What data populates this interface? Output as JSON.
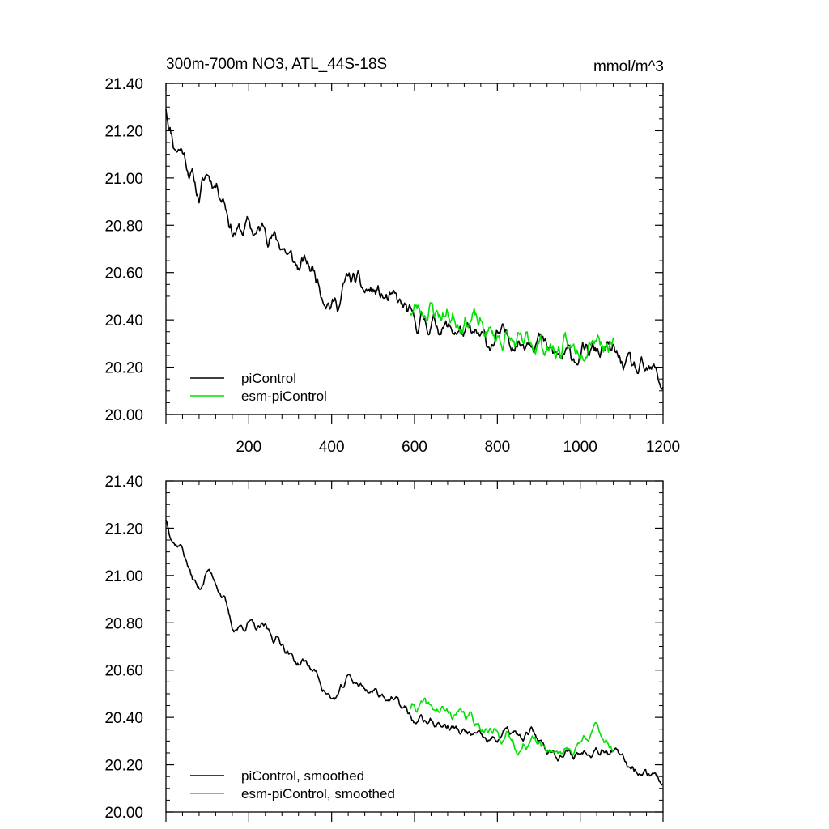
{
  "colors": {
    "picontrol": "#000000",
    "esm_picontrol": "#00e000",
    "axis": "#000000",
    "background": "#ffffff"
  },
  "chart_data": [
    {
      "type": "line",
      "title": "300m-700m NO3, ATL_44S-18S",
      "units": "mmol/m^3",
      "xlabel": "",
      "ylabel": "",
      "xlim": [
        0,
        1200
      ],
      "ylim": [
        20.0,
        21.4
      ],
      "x_ticks": [
        200,
        400,
        600,
        800,
        1000,
        1200
      ],
      "y_ticks": [
        "20.00",
        "20.20",
        "20.40",
        "20.60",
        "20.80",
        "21.00",
        "21.20",
        "21.40"
      ],
      "legend_position": "bottom-left",
      "series": [
        {
          "name": "piControl",
          "color": "#000000",
          "x_start": 0,
          "x_end": 1200,
          "anchors": [
            [
              0,
              21.3
            ],
            [
              20,
              21.14
            ],
            [
              40,
              21.12
            ],
            [
              60,
              21.02
            ],
            [
              80,
              20.92
            ],
            [
              100,
              21.02
            ],
            [
              120,
              20.98
            ],
            [
              140,
              20.92
            ],
            [
              160,
              20.78
            ],
            [
              180,
              20.77
            ],
            [
              200,
              20.8
            ],
            [
              220,
              20.76
            ],
            [
              240,
              20.8
            ],
            [
              260,
              20.74
            ],
            [
              280,
              20.72
            ],
            [
              300,
              20.66
            ],
            [
              320,
              20.62
            ],
            [
              340,
              20.64
            ],
            [
              360,
              20.6
            ],
            [
              380,
              20.52
            ],
            [
              400,
              20.46
            ],
            [
              420,
              20.48
            ],
            [
              440,
              20.58
            ],
            [
              460,
              20.56
            ],
            [
              480,
              20.52
            ],
            [
              500,
              20.52
            ],
            [
              520,
              20.5
            ],
            [
              540,
              20.48
            ],
            [
              560,
              20.47
            ],
            [
              580,
              20.44
            ],
            [
              600,
              20.38
            ],
            [
              620,
              20.4
            ],
            [
              640,
              20.38
            ],
            [
              660,
              20.38
            ],
            [
              680,
              20.36
            ],
            [
              700,
              20.36
            ],
            [
              720,
              20.34
            ],
            [
              740,
              20.33
            ],
            [
              760,
              20.32
            ],
            [
              780,
              20.3
            ],
            [
              800,
              20.32
            ],
            [
              820,
              20.33
            ],
            [
              840,
              20.32
            ],
            [
              860,
              20.3
            ],
            [
              880,
              20.34
            ],
            [
              900,
              20.32
            ],
            [
              920,
              20.27
            ],
            [
              940,
              20.25
            ],
            [
              960,
              20.24
            ],
            [
              980,
              20.25
            ],
            [
              1000,
              20.25
            ],
            [
              1020,
              20.26
            ],
            [
              1040,
              20.27
            ],
            [
              1060,
              20.27
            ],
            [
              1080,
              20.26
            ],
            [
              1100,
              20.22
            ],
            [
              1120,
              20.2
            ],
            [
              1140,
              20.18
            ],
            [
              1160,
              20.17
            ],
            [
              1180,
              20.18
            ],
            [
              1200,
              20.12
            ]
          ],
          "noise": 0.05,
          "seed": 11
        },
        {
          "name": "esm-piControl",
          "color": "#00e000",
          "x_start": 590,
          "x_end": 1080,
          "anchors": [
            [
              590,
              20.44
            ],
            [
              620,
              20.45
            ],
            [
              660,
              20.43
            ],
            [
              700,
              20.41
            ],
            [
              740,
              20.4
            ],
            [
              780,
              20.34
            ],
            [
              820,
              20.32
            ],
            [
              860,
              20.28
            ],
            [
              880,
              20.32
            ],
            [
              900,
              20.3
            ],
            [
              940,
              20.27
            ],
            [
              980,
              20.27
            ],
            [
              1000,
              20.29
            ],
            [
              1030,
              20.35
            ],
            [
              1060,
              20.31
            ],
            [
              1080,
              20.28
            ]
          ],
          "noise": 0.06,
          "seed": 23
        }
      ]
    },
    {
      "type": "line",
      "title": "",
      "xlabel": "",
      "ylabel": "",
      "xlim": [
        0,
        1200
      ],
      "ylim": [
        20.0,
        21.4
      ],
      "y_ticks": [
        "20.00",
        "20.20",
        "20.40",
        "20.60",
        "20.80",
        "21.00",
        "21.20",
        "21.40"
      ],
      "legend_position": "bottom-left",
      "series": [
        {
          "name": "piControl, smoothed",
          "color": "#000000",
          "x_start": 0,
          "x_end": 1200,
          "anchors": [
            [
              0,
              21.24
            ],
            [
              20,
              21.14
            ],
            [
              40,
              21.12
            ],
            [
              60,
              21.0
            ],
            [
              80,
              20.94
            ],
            [
              100,
              21.02
            ],
            [
              120,
              20.98
            ],
            [
              140,
              20.9
            ],
            [
              160,
              20.78
            ],
            [
              180,
              20.78
            ],
            [
              200,
              20.8
            ],
            [
              220,
              20.77
            ],
            [
              240,
              20.78
            ],
            [
              260,
              20.74
            ],
            [
              280,
              20.72
            ],
            [
              300,
              20.66
            ],
            [
              320,
              20.63
            ],
            [
              340,
              20.63
            ],
            [
              360,
              20.59
            ],
            [
              380,
              20.53
            ],
            [
              400,
              20.47
            ],
            [
              420,
              20.5
            ],
            [
              440,
              20.57
            ],
            [
              460,
              20.55
            ],
            [
              480,
              20.52
            ],
            [
              500,
              20.51
            ],
            [
              520,
              20.5
            ],
            [
              540,
              20.48
            ],
            [
              560,
              20.46
            ],
            [
              580,
              20.43
            ],
            [
              600,
              20.38
            ],
            [
              620,
              20.39
            ],
            [
              640,
              20.38
            ],
            [
              660,
              20.37
            ],
            [
              680,
              20.36
            ],
            [
              700,
              20.35
            ],
            [
              720,
              20.33
            ],
            [
              740,
              20.33
            ],
            [
              760,
              20.31
            ],
            [
              780,
              20.3
            ],
            [
              800,
              20.31
            ],
            [
              820,
              20.34
            ],
            [
              840,
              20.33
            ],
            [
              860,
              20.3
            ],
            [
              880,
              20.34
            ],
            [
              900,
              20.31
            ],
            [
              920,
              20.27
            ],
            [
              940,
              20.25
            ],
            [
              960,
              20.24
            ],
            [
              980,
              20.24
            ],
            [
              1000,
              20.25
            ],
            [
              1020,
              20.26
            ],
            [
              1040,
              20.27
            ],
            [
              1060,
              20.27
            ],
            [
              1080,
              20.26
            ],
            [
              1100,
              20.22
            ],
            [
              1120,
              20.2
            ],
            [
              1140,
              20.18
            ],
            [
              1160,
              20.16
            ],
            [
              1180,
              20.17
            ],
            [
              1200,
              20.12
            ]
          ],
          "noise": 0.025,
          "seed": 37
        },
        {
          "name": "esm-piControl, smoothed",
          "color": "#00e000",
          "x_start": 590,
          "x_end": 1080,
          "anchors": [
            [
              590,
              20.44
            ],
            [
              620,
              20.45
            ],
            [
              660,
              20.43
            ],
            [
              700,
              20.41
            ],
            [
              740,
              20.4
            ],
            [
              780,
              20.34
            ],
            [
              820,
              20.32
            ],
            [
              860,
              20.26
            ],
            [
              880,
              20.31
            ],
            [
              900,
              20.29
            ],
            [
              940,
              20.26
            ],
            [
              980,
              20.26
            ],
            [
              1000,
              20.29
            ],
            [
              1030,
              20.36
            ],
            [
              1060,
              20.31
            ],
            [
              1080,
              20.27
            ]
          ],
          "noise": 0.03,
          "seed": 41
        }
      ]
    }
  ]
}
